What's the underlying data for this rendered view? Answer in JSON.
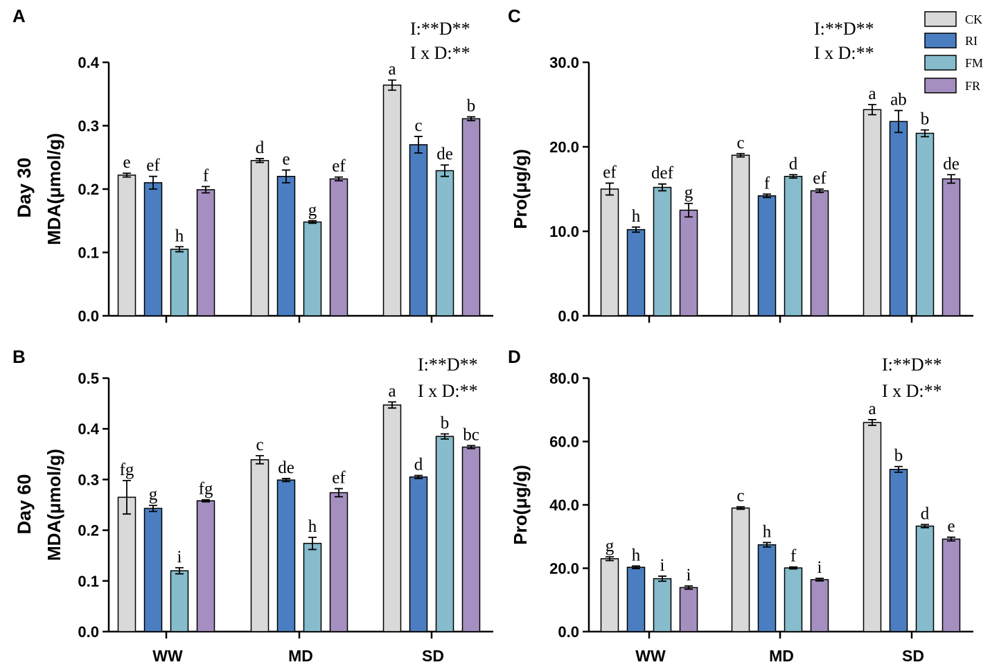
{
  "legend": [
    {
      "name": "CK",
      "color": "#d9d9d9"
    },
    {
      "name": "RI",
      "color": "#4a7ec1"
    },
    {
      "name": "FM",
      "color": "#86bccc"
    },
    {
      "name": "FR",
      "color": "#a48fc0"
    }
  ],
  "row_labels": [
    "Day 30",
    "Day 60"
  ],
  "chart_data": [
    {
      "panel": "A",
      "type": "bar",
      "ylabel": "MDA(μmol/g)",
      "ylim": [
        0,
        0.4
      ],
      "yticks": [
        "0.0",
        "0.1",
        "0.2",
        "0.3",
        "0.4"
      ],
      "categories": [
        "WW",
        "MD",
        "SD"
      ],
      "show_xlabels": false,
      "annotations": [
        "I:**D**",
        "I x D:**"
      ],
      "series": [
        {
          "name": "CK",
          "values": [
            0.222,
            0.245,
            0.364
          ],
          "errors": [
            0.003,
            0.003,
            0.008
          ],
          "letters": [
            "e",
            "d",
            "a"
          ]
        },
        {
          "name": "RI",
          "values": [
            0.21,
            0.22,
            0.27
          ],
          "errors": [
            0.01,
            0.01,
            0.013
          ],
          "letters": [
            "ef",
            "e",
            "c"
          ]
        },
        {
          "name": "FM",
          "values": [
            0.105,
            0.148,
            0.229
          ],
          "errors": [
            0.004,
            0.002,
            0.009
          ],
          "letters": [
            "h",
            "g",
            "de"
          ]
        },
        {
          "name": "FR",
          "values": [
            0.199,
            0.216,
            0.311
          ],
          "errors": [
            0.005,
            0.003,
            0.003
          ],
          "letters": [
            "f",
            "ef",
            "b"
          ]
        }
      ]
    },
    {
      "panel": "B",
      "type": "bar",
      "ylabel": "MDA(μmol/g)",
      "ylim": [
        0,
        0.5
      ],
      "yticks": [
        "0.0",
        "0.1",
        "0.2",
        "0.3",
        "0.4",
        "0.5"
      ],
      "categories": [
        "WW",
        "MD",
        "SD"
      ],
      "show_xlabels": true,
      "annotations": [
        "I:**D**",
        "I x D:**"
      ],
      "series": [
        {
          "name": "CK",
          "values": [
            0.265,
            0.339,
            0.447
          ],
          "errors": [
            0.033,
            0.008,
            0.006
          ],
          "letters": [
            "fg",
            "c",
            "a"
          ]
        },
        {
          "name": "RI",
          "values": [
            0.243,
            0.299,
            0.305
          ],
          "errors": [
            0.006,
            0.003,
            0.003
          ],
          "letters": [
            "g",
            "de",
            "d"
          ]
        },
        {
          "name": "FM",
          "values": [
            0.12,
            0.174,
            0.385
          ],
          "errors": [
            0.006,
            0.012,
            0.005
          ],
          "letters": [
            "i",
            "h",
            "b"
          ]
        },
        {
          "name": "FR",
          "values": [
            0.258,
            0.274,
            0.364
          ],
          "errors": [
            0.002,
            0.008,
            0.003
          ],
          "letters": [
            "fg",
            "ef",
            "bc"
          ]
        }
      ]
    },
    {
      "panel": "C",
      "type": "bar",
      "ylabel": "Pro(μg/g)",
      "ylim": [
        0,
        30
      ],
      "yticks": [
        "0.0",
        "10.0",
        "20.0",
        "30.0"
      ],
      "categories": [
        "WW",
        "MD",
        "SD"
      ],
      "show_xlabels": false,
      "annotations": [
        "I:**D**",
        "I x D:**"
      ],
      "series": [
        {
          "name": "CK",
          "values": [
            15.0,
            19.0,
            24.4
          ],
          "errors": [
            0.7,
            0.2,
            0.6
          ],
          "letters": [
            "ef",
            "c",
            "a"
          ]
        },
        {
          "name": "RI",
          "values": [
            10.2,
            14.2,
            23.0
          ],
          "errors": [
            0.3,
            0.2,
            1.3
          ],
          "letters": [
            "h",
            "f",
            "ab"
          ]
        },
        {
          "name": "FM",
          "values": [
            15.2,
            16.5,
            21.6
          ],
          "errors": [
            0.4,
            0.2,
            0.4
          ],
          "letters": [
            "def",
            "d",
            "b"
          ]
        },
        {
          "name": "FR",
          "values": [
            12.5,
            14.8,
            16.2
          ],
          "errors": [
            0.8,
            0.2,
            0.5
          ],
          "letters": [
            "g",
            "ef",
            "de"
          ]
        }
      ]
    },
    {
      "panel": "D",
      "type": "bar",
      "ylabel": "Pro(μg/g)",
      "ylim": [
        0,
        80
      ],
      "yticks": [
        "0.0",
        "20.0",
        "40.0",
        "60.0",
        "80.0"
      ],
      "categories": [
        "WW",
        "MD",
        "SD"
      ],
      "show_xlabels": true,
      "annotations": [
        "I:**D**",
        "I x D:**"
      ],
      "series": [
        {
          "name": "CK",
          "values": [
            23.0,
            39.0,
            66.0
          ],
          "errors": [
            0.6,
            0.4,
            0.9
          ],
          "letters": [
            "g",
            "c",
            "a"
          ]
        },
        {
          "name": "RI",
          "values": [
            20.3,
            27.4,
            51.2
          ],
          "errors": [
            0.4,
            0.7,
            0.9
          ],
          "letters": [
            "h",
            "h",
            "b"
          ]
        },
        {
          "name": "FM",
          "values": [
            16.7,
            20.1,
            33.3
          ],
          "errors": [
            0.8,
            0.3,
            0.5
          ],
          "letters": [
            "i",
            "f",
            "d"
          ]
        },
        {
          "name": "FR",
          "values": [
            13.9,
            16.4,
            29.2
          ],
          "errors": [
            0.5,
            0.4,
            0.6
          ],
          "letters": [
            "i",
            "i",
            "e"
          ]
        }
      ]
    }
  ]
}
